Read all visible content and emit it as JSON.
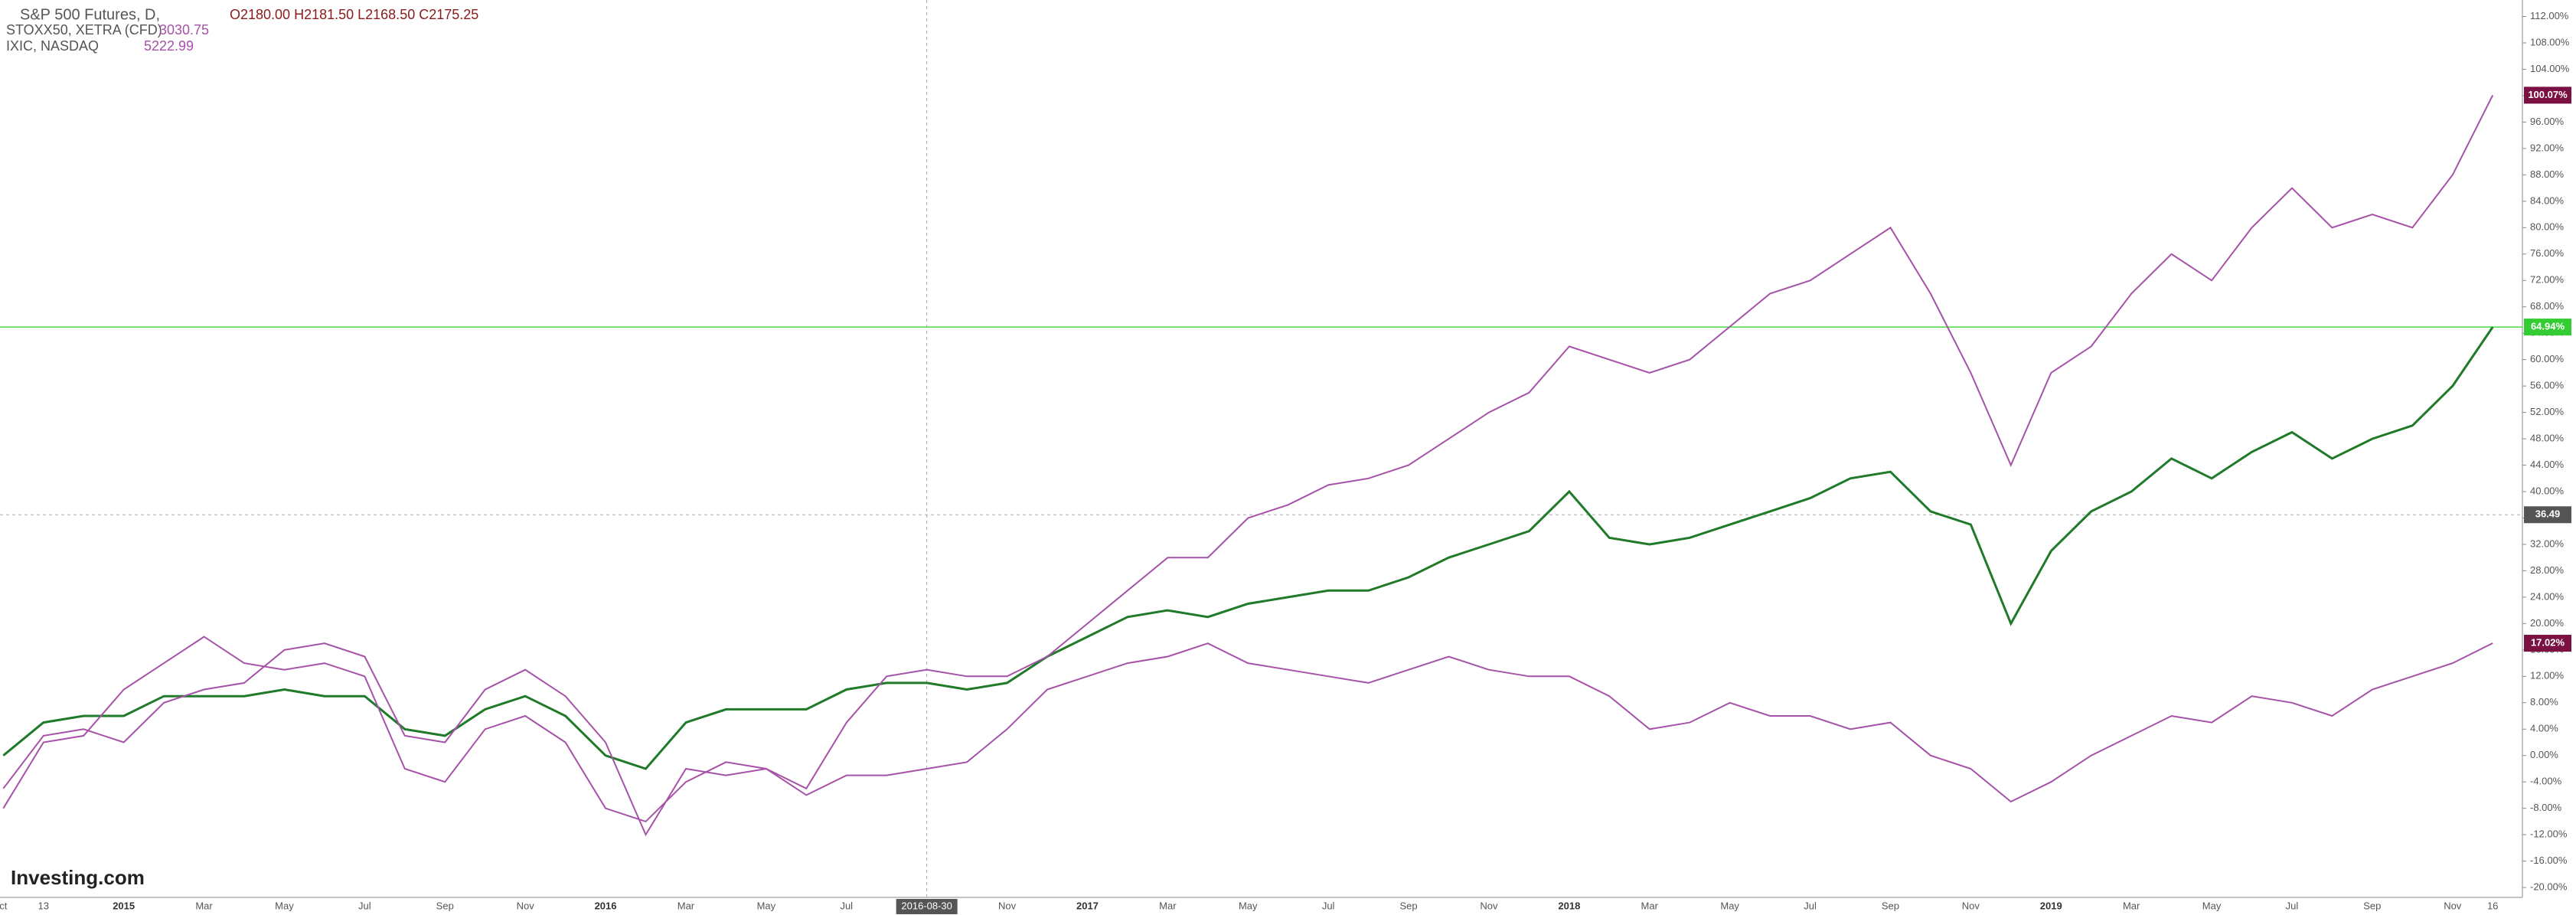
{
  "chart_data": {
    "type": "line",
    "title": "S&P 500 Futures, D,",
    "ohlc": "O2180.00 H2181.50 L2168.50 C2175.25",
    "watermark": "Investing.com",
    "categories": [
      "ct",
      "13",
      null,
      "2015",
      null,
      "Mar",
      null,
      "May",
      null,
      "Jul",
      null,
      "Sep",
      null,
      "Nov",
      null,
      "2016",
      null,
      "Mar",
      null,
      "May",
      null,
      "Jul",
      null,
      "2016-08-30",
      null,
      "Nov",
      null,
      "2017",
      null,
      "Mar",
      null,
      "May",
      null,
      "Jul",
      null,
      "Sep",
      null,
      "Nov",
      null,
      "2018",
      null,
      "Mar",
      null,
      "May",
      null,
      "Jul",
      null,
      "Sep",
      null,
      "Nov",
      null,
      "2019",
      null,
      "Mar",
      null,
      "May",
      null,
      "Jul",
      null,
      "Sep",
      null,
      "Nov",
      "16"
    ],
    "series": [
      {
        "name": "S&P 500 Futures, D,",
        "color": "#1f7a2a",
        "last_label": "64.94%",
        "values": [
          0,
          5,
          6,
          6,
          9,
          9,
          9,
          10,
          9,
          9,
          4,
          3,
          7,
          9,
          6,
          0,
          -2,
          5,
          7,
          7,
          7,
          10,
          11,
          11,
          10,
          11,
          15,
          18,
          21,
          22,
          21,
          23,
          24,
          25,
          25,
          27,
          30,
          32,
          34,
          40,
          33,
          32,
          33,
          35,
          37,
          39,
          42,
          43,
          37,
          35,
          20,
          31,
          37,
          40,
          45,
          42,
          46,
          49,
          45,
          48,
          50,
          56,
          64.94
        ]
      },
      {
        "name": "IXIC, NASDAQ",
        "color": "#a552a8",
        "legend_value": "5222.99",
        "last_label": "100.07%",
        "values": [
          -5,
          3,
          4,
          2,
          8,
          10,
          11,
          16,
          17,
          15,
          3,
          2,
          10,
          13,
          9,
          2,
          -12,
          -2,
          -3,
          -2,
          -5,
          5,
          12,
          13,
          12,
          12,
          15,
          20,
          25,
          30,
          30,
          36,
          38,
          41,
          42,
          44,
          48,
          52,
          55,
          62,
          60,
          58,
          60,
          65,
          70,
          72,
          76,
          80,
          70,
          58,
          44,
          58,
          62,
          70,
          76,
          72,
          80,
          86,
          80,
          82,
          80,
          88,
          100.07
        ]
      },
      {
        "name": "STOXX50, XETRA (CFD)",
        "color": "#a552a8",
        "legend_value": "3030.75",
        "last_label": "17.02%",
        "values": [
          -8,
          2,
          3,
          10,
          14,
          18,
          14,
          13,
          14,
          12,
          -2,
          -4,
          4,
          6,
          2,
          -8,
          -10,
          -4,
          -1,
          -2,
          -6,
          -3,
          -3,
          -2,
          -1,
          4,
          10,
          12,
          14,
          15,
          17,
          14,
          13,
          12,
          11,
          13,
          15,
          13,
          12,
          12,
          9,
          4,
          5,
          8,
          6,
          6,
          4,
          5,
          0,
          -2,
          -7,
          -4,
          0,
          3,
          6,
          5,
          9,
          8,
          6,
          10,
          12,
          14,
          17.02
        ]
      }
    ],
    "crosshair": {
      "value": 36.49,
      "label": "36.49"
    },
    "hline": 64.94,
    "ylim": [
      -21.5,
      114.5
    ],
    "yticks": [
      {
        "value": 112,
        "label": "112.00%"
      },
      {
        "value": 108,
        "label": "108.00%"
      },
      {
        "value": 104,
        "label": "104.00%"
      },
      {
        "value": 100,
        "label": "100.00%"
      },
      {
        "value": 96,
        "label": "96.00%"
      },
      {
        "value": 92,
        "label": "92.00%"
      },
      {
        "value": 88,
        "label": "88.00%"
      },
      {
        "value": 84,
        "label": "84.00%"
      },
      {
        "value": 80,
        "label": "80.00%"
      },
      {
        "value": 76,
        "label": "76.00%"
      },
      {
        "value": 72,
        "label": "72.00%"
      },
      {
        "value": 68,
        "label": "68.00%"
      },
      {
        "value": 64,
        "label": "64.00%"
      },
      {
        "value": 60,
        "label": "60.00%"
      },
      {
        "value": 56,
        "label": "56.00%"
      },
      {
        "value": 52,
        "label": "52.00%"
      },
      {
        "value": 48,
        "label": "48.00%"
      },
      {
        "value": 44,
        "label": "44.00%"
      },
      {
        "value": 40,
        "label": "40.00%"
      },
      {
        "value": 36,
        "label": "36.00%"
      },
      {
        "value": 32,
        "label": "32.00%"
      },
      {
        "value": 28,
        "label": "28.00%"
      },
      {
        "value": 24,
        "label": "24.00%"
      },
      {
        "value": 20,
        "label": "20.00%"
      },
      {
        "value": 16,
        "label": "16.00%"
      },
      {
        "value": 12,
        "label": "12.00%"
      },
      {
        "value": 8,
        "label": "8.00%"
      },
      {
        "value": 4,
        "label": "4.00%"
      },
      {
        "value": 0,
        "label": "0.00%"
      },
      {
        "value": -4,
        "label": "-4.00%"
      },
      {
        "value": -8,
        "label": "-8.00%"
      },
      {
        "value": -12,
        "label": "-12.00%"
      },
      {
        "value": -16,
        "label": "-16.00%"
      },
      {
        "value": -20,
        "label": "-20.00%"
      }
    ],
    "grid": false
  }
}
